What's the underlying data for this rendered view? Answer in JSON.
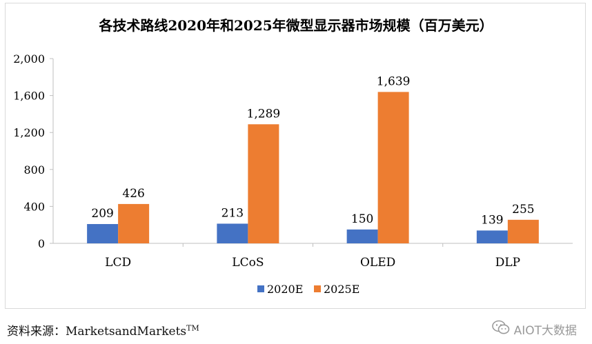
{
  "colors": {
    "series_2020": "#4472C4",
    "series_2025": "#ED7D31",
    "axis": "#bfbfbf",
    "frame": "#d9d9d9",
    "text": "#000000",
    "watermark": "#9a9a9a"
  },
  "chart_data": {
    "type": "bar",
    "title": "各技术路线2020年和2025年微型显示器市场规模（百万美元）",
    "xlabel": "",
    "ylabel": "",
    "categories": [
      "LCD",
      "LCoS",
      "OLED",
      "DLP"
    ],
    "series": [
      {
        "name": "2020E",
        "values": [
          209,
          213,
          150,
          139
        ],
        "labels": [
          "209",
          "213",
          "150",
          "139"
        ]
      },
      {
        "name": "2025E",
        "values": [
          426,
          1289,
          1639,
          255
        ],
        "labels": [
          "426",
          "1,289",
          "1,639",
          "255"
        ]
      }
    ],
    "ylim": [
      0,
      2000
    ],
    "yticks": [
      {
        "value": 0,
        "label": "0"
      },
      {
        "value": 400,
        "label": "400"
      },
      {
        "value": 800,
        "label": "800"
      },
      {
        "value": 1200,
        "label": "1,200"
      },
      {
        "value": 1600,
        "label": "1,600"
      },
      {
        "value": 2000,
        "label": "2,000"
      }
    ],
    "grid": false,
    "legend_position": "bottom"
  },
  "source": {
    "label": "资料来源：",
    "name": "MarketsandMarkets",
    "trademark": "TM"
  },
  "watermark": {
    "text": "AIOT大数据",
    "icon": "wechat-icon"
  }
}
